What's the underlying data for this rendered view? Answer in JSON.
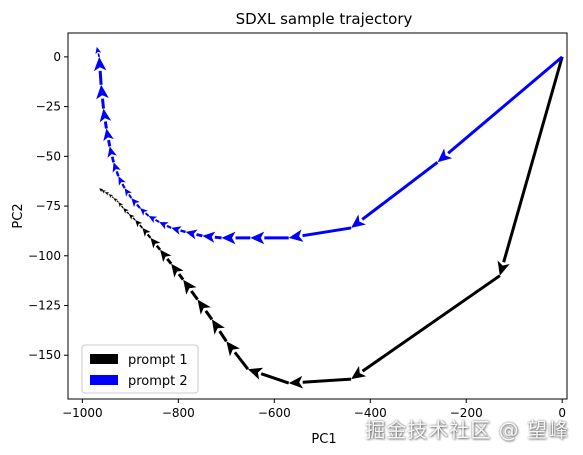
{
  "chart_data": {
    "type": "line",
    "title": "SDXL sample trajectory",
    "xlabel": "PC1",
    "ylabel": "PC2",
    "xlim": [
      -1030,
      10
    ],
    "ylim": [
      -172,
      12
    ],
    "xticks": [
      -1000,
      -800,
      -600,
      -400,
      -200,
      0
    ],
    "yticks": [
      0,
      -25,
      -50,
      -75,
      -100,
      -125,
      -150
    ],
    "grid": false,
    "legend_position": "lower-left",
    "series": [
      {
        "name": "prompt 1",
        "color": "#000000",
        "x": [
          0,
          -130,
          -440,
          -570,
          -655,
          -700,
          -730,
          -760,
          -790,
          -815,
          -838,
          -858,
          -875,
          -890,
          -903,
          -915,
          -925,
          -935,
          -945,
          -953,
          -960,
          -965
        ],
        "y": [
          0,
          -110,
          -162,
          -164,
          -157,
          -143,
          -132,
          -122,
          -112,
          -104,
          -97,
          -91,
          -86,
          -82,
          -79,
          -76,
          -73,
          -71,
          -69,
          -68,
          -67,
          -66
        ]
      },
      {
        "name": "prompt 2",
        "color": "#0000ff",
        "x": [
          0,
          -260,
          -440,
          -570,
          -650,
          -710,
          -750,
          -785,
          -815,
          -840,
          -862,
          -880,
          -898,
          -912,
          -925,
          -935,
          -943,
          -950,
          -956,
          -961,
          -965,
          -970
        ],
        "y": [
          0,
          -53,
          -86,
          -91,
          -91,
          -91,
          -90,
          -88,
          -86,
          -83,
          -80,
          -76,
          -71,
          -66,
          -60,
          -53,
          -45,
          -36,
          -26,
          -14,
          0,
          5
        ]
      }
    ]
  },
  "watermark": "掘金技术社区 @ 望峰"
}
